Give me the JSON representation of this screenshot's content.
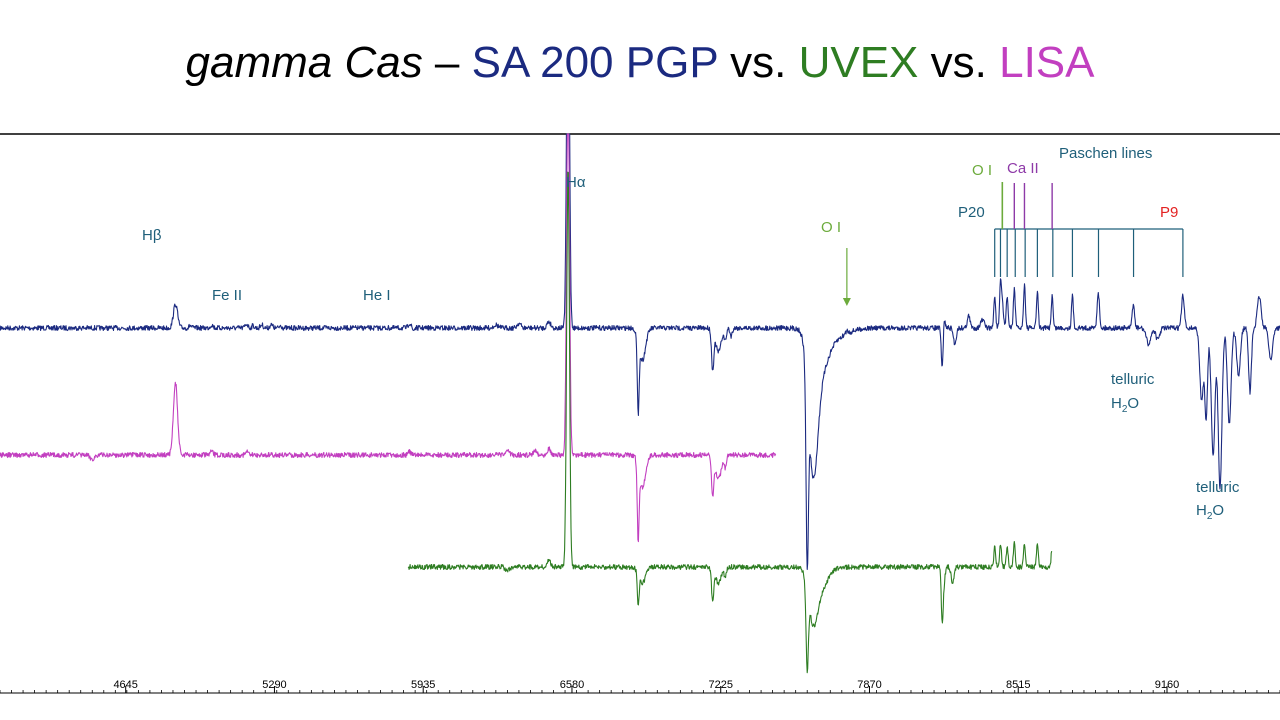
{
  "title": {
    "star": "gamma Cas",
    "dash": " – ",
    "inst1": "SA 200 PGP",
    "vs1": " vs. ",
    "inst2": "UVEX",
    "vs2": " vs. ",
    "inst3": "LISA"
  },
  "colors": {
    "sa200": "#1b2a80",
    "uvex": "#2e7d22",
    "lisa": "#c23fc0",
    "label": "#1f5f7a",
    "oi": "#6cab3c",
    "caii": "#8e3aa8",
    "p9": "#e32222"
  },
  "labels": {
    "hbeta": "Hβ",
    "feii": "Fe II",
    "hei": "He I",
    "halpha": "Hα",
    "oi_7772": "O I",
    "oi_8446": "O I",
    "caii": "Ca II",
    "paschen": "Paschen lines",
    "p20": "P20",
    "p9": "P9",
    "telluric1_line1": "telluric",
    "telluric1_line2": "H",
    "telluric1_sub": "2",
    "telluric1_tail": "O",
    "telluric2_line1": "telluric",
    "telluric2_line2": "H",
    "telluric2_sub": "2",
    "telluric2_tail": "O"
  },
  "chart_data": {
    "type": "line",
    "x_unit": "Å",
    "xlim": [
      4100,
      9650
    ],
    "x_ticks": [
      4645,
      5290,
      5935,
      6580,
      7225,
      7870,
      8515,
      9160
    ],
    "grid": false,
    "series": [
      {
        "name": "SA 200 PGP",
        "color": "#1b2a80",
        "level": 1.0,
        "x_range": [
          4100,
          9650
        ],
        "features": [
          [
            4861,
            0.3,
            9
          ],
          [
            4925,
            0.03,
            5
          ],
          [
            5018,
            0.04,
            6
          ],
          [
            5169,
            0.05,
            6
          ],
          [
            5197,
            0.03,
            5
          ],
          [
            5235,
            0.04,
            6
          ],
          [
            5276,
            0.04,
            6
          ],
          [
            5317,
            0.03,
            5
          ],
          [
            5876,
            0.06,
            6
          ],
          [
            5892,
            -0.03,
            4
          ],
          [
            6250,
            0.04,
            10
          ],
          [
            6350,
            0.06,
            8
          ],
          [
            6480,
            0.08,
            8
          ],
          [
            6563,
            5.0,
            6
          ],
          [
            6867,
            -0.9,
            4
          ],
          [
            6885,
            -0.4,
            14
          ],
          [
            7190,
            -0.5,
            5
          ],
          [
            7215,
            -0.3,
            12
          ],
          [
            7245,
            -0.15,
            5
          ],
          [
            7270,
            -0.1,
            5
          ],
          [
            7600,
            -2.2,
            5
          ],
          [
            7625,
            -1.6,
            20
          ],
          [
            7660,
            -0.4,
            30
          ],
          [
            7700,
            -0.15,
            60
          ],
          [
            7772,
            0.04,
            6
          ],
          [
            8185,
            -0.5,
            4
          ],
          [
            8195,
            0.1,
            4
          ],
          [
            8240,
            -0.2,
            6
          ],
          [
            8300,
            0.15,
            6
          ],
          [
            8360,
            0.1,
            8
          ],
          [
            8413,
            0.4,
            4
          ],
          [
            8438,
            0.5,
            4
          ],
          [
            8446,
            0.3,
            5
          ],
          [
            8467,
            0.4,
            4
          ],
          [
            8498,
            0.5,
            4
          ],
          [
            8542,
            0.55,
            4
          ],
          [
            8598,
            0.45,
            4
          ],
          [
            8662,
            0.4,
            4
          ],
          [
            8750,
            0.4,
            4
          ],
          [
            8862,
            0.45,
            5
          ],
          [
            9014,
            0.3,
            5
          ],
          [
            9229,
            0.4,
            6
          ],
          [
            9080,
            -0.2,
            10
          ],
          [
            9120,
            -0.15,
            8
          ],
          [
            9310,
            -0.9,
            8
          ],
          [
            9330,
            -1.1,
            6
          ],
          [
            9360,
            -1.6,
            8
          ],
          [
            9390,
            -2.0,
            8
          ],
          [
            9430,
            -1.2,
            8
          ],
          [
            9470,
            -0.6,
            8
          ],
          [
            9520,
            -0.8,
            6
          ],
          [
            9560,
            0.4,
            8
          ],
          [
            9610,
            -0.4,
            8
          ]
        ]
      },
      {
        "name": "LISA",
        "color": "#c23fc0",
        "level": 0.0,
        "x_range": [
          4100,
          7465
        ],
        "features": [
          [
            4861,
            0.9,
            9
          ],
          [
            4500,
            -0.05,
            10
          ],
          [
            5018,
            0.04,
            6
          ],
          [
            5169,
            0.04,
            6
          ],
          [
            5876,
            0.04,
            6
          ],
          [
            6300,
            0.05,
            8
          ],
          [
            6420,
            0.06,
            8
          ],
          [
            6480,
            0.08,
            8
          ],
          [
            6563,
            5.0,
            6
          ],
          [
            6867,
            -0.9,
            4
          ],
          [
            6885,
            -0.4,
            14
          ],
          [
            7190,
            -0.5,
            5
          ],
          [
            7215,
            -0.3,
            12
          ],
          [
            7245,
            -0.15,
            5
          ]
        ]
      },
      {
        "name": "UVEX",
        "color": "#2e7d22",
        "level": -1.5,
        "x_range": [
          5870,
          8660
        ],
        "features": [
          [
            6300,
            -0.05,
            8
          ],
          [
            6480,
            0.08,
            8
          ],
          [
            6563,
            5.0,
            6
          ],
          [
            6867,
            -0.4,
            4
          ],
          [
            6885,
            -0.2,
            14
          ],
          [
            7190,
            -0.4,
            5
          ],
          [
            7215,
            -0.2,
            12
          ],
          [
            7245,
            -0.12,
            5
          ],
          [
            7600,
            -1.0,
            5
          ],
          [
            7625,
            -0.6,
            20
          ],
          [
            7660,
            -0.25,
            30
          ],
          [
            8185,
            -0.5,
            4
          ],
          [
            8190,
            -0.25,
            6
          ],
          [
            8230,
            -0.2,
            6
          ],
          [
            8413,
            0.25,
            4
          ],
          [
            8438,
            0.3,
            4
          ],
          [
            8467,
            0.25,
            4
          ],
          [
            8498,
            0.3,
            4
          ],
          [
            8542,
            0.3,
            4
          ],
          [
            8598,
            0.28,
            4
          ],
          [
            8662,
            0.25,
            4
          ]
        ]
      }
    ],
    "line_markers": {
      "paschen": [
        8413,
        8438,
        8467,
        8502,
        8545,
        8598,
        8665,
        8750,
        8863,
        9015,
        9229
      ],
      "oi": [
        8446
      ],
      "caii": [
        8498,
        8542,
        8662
      ],
      "oi_arrow": [
        7772
      ]
    }
  }
}
